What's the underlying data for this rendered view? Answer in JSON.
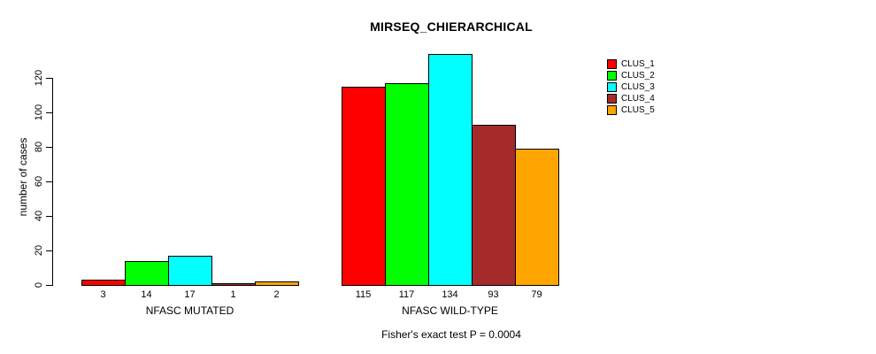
{
  "chart_data": {
    "type": "bar",
    "title": "MIRSEQ_CHIERARCHICAL",
    "ylabel": "number of cases",
    "xlabel": "",
    "ylim": [
      0,
      134
    ],
    "yticks": [
      0,
      20,
      40,
      60,
      80,
      100,
      120
    ],
    "grid": false,
    "categories": [
      "NFASC MUTATED",
      "NFASC WILD-TYPE"
    ],
    "series": [
      {
        "name": "CLUS_1",
        "color": "#ff0000",
        "values": [
          3,
          115
        ]
      },
      {
        "name": "CLUS_2",
        "color": "#00ff00",
        "values": [
          14,
          117
        ]
      },
      {
        "name": "CLUS_3",
        "color": "#00ffff",
        "values": [
          17,
          134
        ]
      },
      {
        "name": "CLUS_4",
        "color": "#a52a2a",
        "values": [
          1,
          93
        ]
      },
      {
        "name": "CLUS_5",
        "color": "#ffa500",
        "values": [
          2,
          79
        ]
      }
    ],
    "bar_value_labels": [
      [
        "3",
        "14",
        "17",
        "1",
        "2"
      ],
      [
        "115",
        "117",
        "134",
        "93",
        "79"
      ]
    ],
    "legend": {
      "position": "top-right",
      "entries": [
        "CLUS_1",
        "CLUS_2",
        "CLUS_3",
        "CLUS_4",
        "CLUS_5"
      ]
    },
    "annotation": "Fisher's exact test P = 0.0004"
  }
}
